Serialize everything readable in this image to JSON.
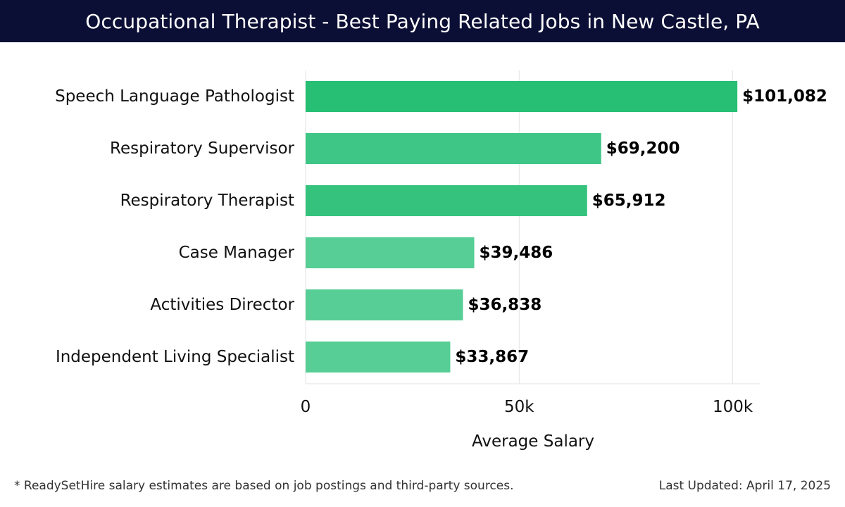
{
  "header": {
    "title": "Occupational Therapist - Best Paying Related Jobs in New Castle, PA"
  },
  "chart_data": {
    "type": "bar",
    "orientation": "horizontal",
    "categories": [
      "Speech Language Pathologist",
      "Respiratory Supervisor",
      "Respiratory Therapist",
      "Case Manager",
      "Activities Director",
      "Independent Living Specialist"
    ],
    "values": [
      101082,
      69200,
      65912,
      39486,
      36838,
      33867
    ],
    "value_labels": [
      "$101,082",
      "$69,200",
      "$65,912",
      "$39,486",
      "$36,838",
      "$33,867"
    ],
    "bar_colors": [
      "#26bf73",
      "#3ec687",
      "#35c27d",
      "#56ce95",
      "#56ce95",
      "#56ce95"
    ],
    "x_ticks": [
      0,
      50000,
      100000
    ],
    "x_tick_labels": [
      "0",
      "50k",
      "100k"
    ],
    "xlim": [
      0,
      106500
    ],
    "xlabel": "Average Salary",
    "ylabel": "",
    "grid": true,
    "gridline_color": "#e3e3e3"
  },
  "footer": {
    "note": "* ReadySetHire salary estimates are based on job postings and third-party sources.",
    "updated": "Last Updated: April 17, 2025"
  }
}
